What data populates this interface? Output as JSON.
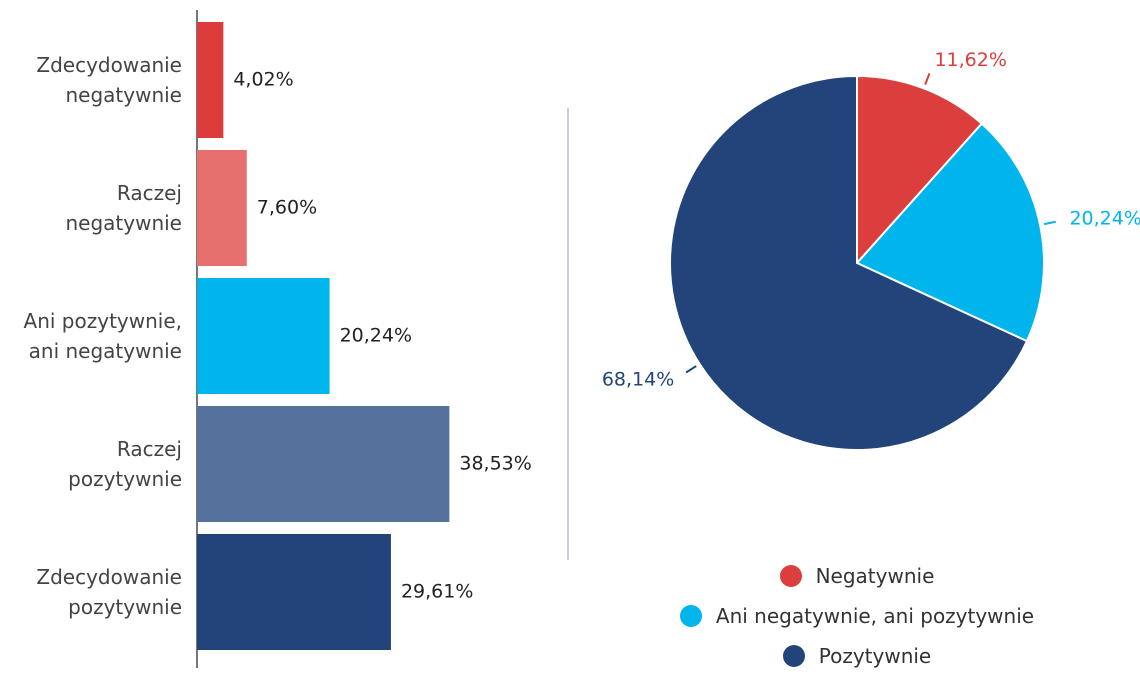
{
  "chart_data": [
    {
      "type": "hbar",
      "categories": [
        "Zdecydowanie negatywnie",
        "Raczej negatywnie",
        "Ani pozytywnie, ani negatywnie",
        "Raczej pozytywnie",
        "Zdecydowanie pozytywnie"
      ],
      "values": [
        4.02,
        7.6,
        20.24,
        38.53,
        29.61
      ],
      "value_labels": [
        "4,02%",
        "7,60%",
        "20,24%",
        "38,53%",
        "29,61%"
      ],
      "colors": [
        "#dc3c3a",
        "#e6706d",
        "#00b5ec",
        "#56719b",
        "#22447a"
      ],
      "xlim": [
        0,
        40
      ]
    },
    {
      "type": "pie",
      "categories": [
        "Negatywnie",
        "Ani negatywnie, ani pozytywnie",
        "Pozytywnie"
      ],
      "values": [
        11.62,
        20.24,
        68.14
      ],
      "value_labels": [
        "11,62%",
        "20,24%",
        "68,14%"
      ],
      "colors": [
        "#db3e3c",
        "#00b5ec",
        "#22447a"
      ]
    }
  ]
}
